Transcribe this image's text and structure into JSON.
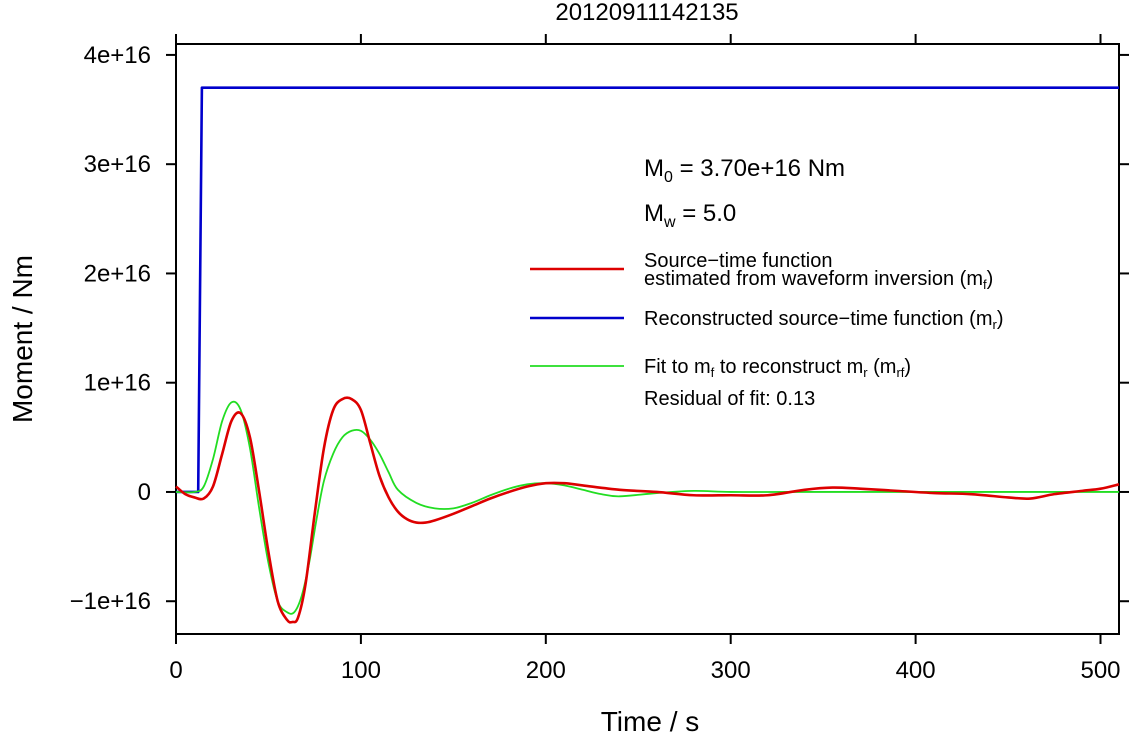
{
  "chart_data": {
    "type": "line",
    "title": "20120911142135",
    "xlabel": "Time / s",
    "ylabel": "Moment / Nm",
    "xlim": [
      0,
      510
    ],
    "ylim": [
      -1.3e+16,
      4.1e+16
    ],
    "x_ticks": [
      0,
      100,
      200,
      300,
      400,
      500
    ],
    "x_tick_labels": [
      "0",
      "100",
      "200",
      "300",
      "400",
      "500"
    ],
    "y_ticks": [
      -1e+16,
      0,
      1e+16,
      2e+16,
      3e+16,
      4e+16
    ],
    "y_tick_labels": [
      "−1e+16",
      "0",
      "1e+16",
      "2e+16",
      "3e+16",
      "4e+16"
    ],
    "grid": false,
    "legend_position": "right",
    "annotations": {
      "m0_symbol": "M",
      "m0_sub": "0",
      "m0_value": " = 3.70e+16 Nm",
      "mw_symbol": "M",
      "mw_sub": "w",
      "mw_value": " = 5.0",
      "residual": "Residual of fit: 0.13"
    },
    "legend": [
      {
        "line1": "Source−time function",
        "line2_text": "estimated from waveform inversion (m",
        "line2_sub": "f",
        "line2_end": ")",
        "color": "#dd0000"
      },
      {
        "text": "Reconstructed source−time function (m",
        "sub": "r",
        "end": ")",
        "color": "#0000cc"
      },
      {
        "text": "Fit to m",
        "sub": "f",
        "mid": " to reconstruct m",
        "sub2": "r",
        "mid2": " (m",
        "sub3": "rf",
        "end": ")",
        "color": "#00dd00"
      }
    ],
    "series": [
      {
        "name": "Source−time function estimated from waveform inversion (mf)",
        "color": "#dd0000",
        "x": [
          0,
          5,
          10,
          15,
          20,
          25,
          30,
          35,
          40,
          45,
          50,
          55,
          60,
          63,
          66,
          70,
          75,
          80,
          85,
          90,
          95,
          100,
          105,
          110,
          115,
          120,
          125,
          130,
          135,
          140,
          150,
          160,
          170,
          180,
          190,
          200,
          210,
          220,
          240,
          260,
          280,
          300,
          320,
          340,
          355,
          370,
          390,
          410,
          430,
          450,
          462,
          475,
          490,
          500,
          510
        ],
        "y": [
          500000000000000.0,
          -200000000000000.0,
          -500000000000000.0,
          -600000000000000.0,
          500000000000000.0,
          3500000000000000.0,
          6500000000000000.0,
          7200000000000000.0,
          5000000000000000.0,
          0.0,
          -5500000000000000.0,
          -1e+16,
          -1.17e+16,
          -1.19e+16,
          -1.15e+16,
          -8500000000000000.0,
          -2000000000000000.0,
          4000000000000000.0,
          7500000000000000.0,
          8500000000000000.0,
          8500000000000000.0,
          7500000000000000.0,
          4500000000000000.0,
          1500000000000000.0,
          -500000000000000.0,
          -1800000000000000.0,
          -2500000000000000.0,
          -2800000000000000.0,
          -2800000000000000.0,
          -2600000000000000.0,
          -2000000000000000.0,
          -1300000000000000.0,
          -600000000000000.0,
          0.0,
          500000000000000.0,
          800000000000000.0,
          800000000000000.0,
          600000000000000.0,
          200000000000000.0,
          0.0,
          -300000000000000.0,
          -300000000000000.0,
          -300000000000000.0,
          200000000000000.0,
          400000000000000.0,
          300000000000000.0,
          100000000000000.0,
          -100000000000000.0,
          -200000000000000.0,
          -500000000000000.0,
          -600000000000000.0,
          -200000000000000.0,
          100000000000000.0,
          300000000000000.0,
          700000000000000.0
        ]
      },
      {
        "name": "Reconstructed source−time function (mr)",
        "color": "#0000cc",
        "x": [
          0,
          12,
          14,
          510
        ],
        "y": [
          0,
          0,
          3.7e+16,
          3.7e+16
        ]
      },
      {
        "name": "Fit to mf to reconstruct mr (mrf)",
        "color": "#22dd22",
        "x": [
          0,
          10,
          15,
          20,
          25,
          30,
          35,
          40,
          45,
          50,
          55,
          60,
          64,
          68,
          72,
          76,
          80,
          85,
          90,
          95,
          100,
          105,
          110,
          115,
          120,
          130,
          140,
          150,
          160,
          170,
          180,
          190,
          200,
          210,
          220,
          230,
          240,
          260,
          280,
          300,
          330,
          360,
          400,
          450,
          510
        ],
        "y": [
          0,
          0,
          500000000000000.0,
          3000000000000000.0,
          6500000000000000.0,
          8200000000000000.0,
          7500000000000000.0,
          4000000000000000.0,
          -1500000000000000.0,
          -6500000000000000.0,
          -1e+16,
          -1.1e+16,
          -1.1e+16,
          -9500000000000000.0,
          -6500000000000000.0,
          -2500000000000000.0,
          1000000000000000.0,
          3500000000000000.0,
          5000000000000000.0,
          5600000000000000.0,
          5600000000000000.0,
          4800000000000000.0,
          3500000000000000.0,
          1800000000000000.0,
          200000000000000.0,
          -1000000000000000.0,
          -1500000000000000.0,
          -1500000000000000.0,
          -1000000000000000.0,
          -300000000000000.0,
          300000000000000.0,
          700000000000000.0,
          800000000000000.0,
          600000000000000.0,
          200000000000000.0,
          -200000000000000.0,
          -400000000000000.0,
          -100000000000000.0,
          100000000000000.0,
          0.0,
          0.0,
          0.0,
          0.0,
          0.0,
          0.0
        ]
      }
    ]
  }
}
